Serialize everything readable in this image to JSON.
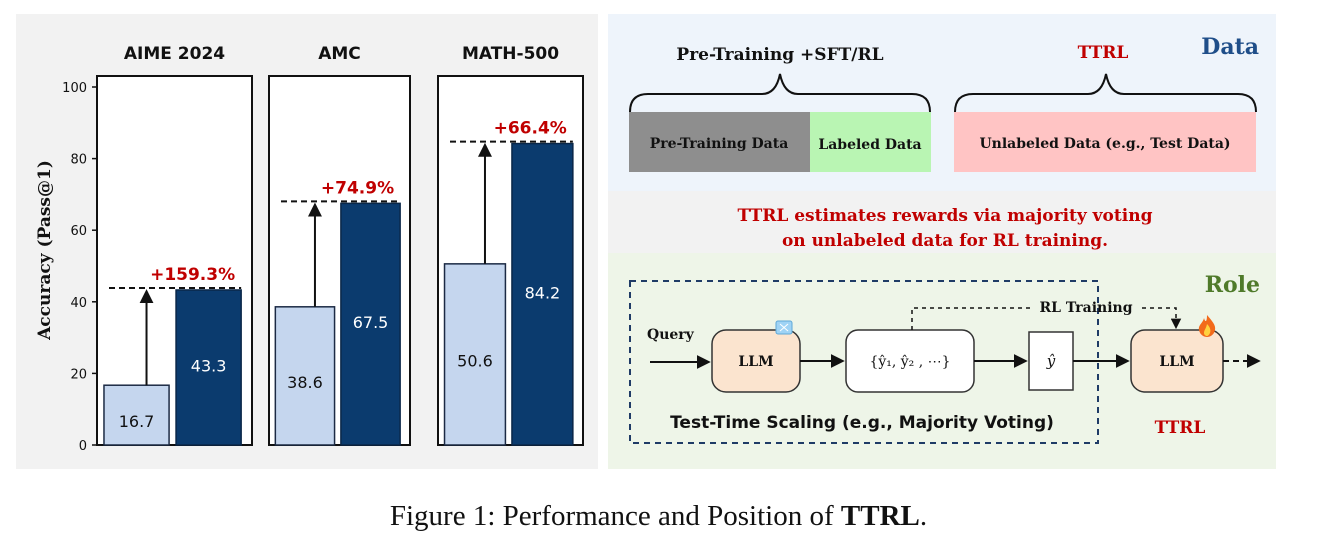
{
  "chart_data": {
    "type": "bar",
    "ylabel": "Accuracy (Pass@1)",
    "ylim": [
      0,
      100
    ],
    "yticks": [
      "0",
      "20",
      "40",
      "60",
      "80",
      "100"
    ],
    "subplots": [
      {
        "title": "AIME 2024",
        "baseline": 16.7,
        "ttrl": 43.3,
        "baseline_label": "16.7",
        "ttrl_label": "43.3",
        "gain": "+159.3%"
      },
      {
        "title": "AMC",
        "baseline": 38.6,
        "ttrl": 67.5,
        "baseline_label": "38.6",
        "ttrl_label": "67.5",
        "gain": "+74.9%"
      },
      {
        "title": "MATH-500",
        "baseline": 50.6,
        "ttrl": 84.2,
        "baseline_label": "50.6",
        "ttrl_label": "84.2",
        "gain": "+66.4%"
      }
    ],
    "colors": {
      "baseline": "#c5d6ee",
      "ttrl": "#0b3b6e",
      "gain": "#c00000"
    }
  },
  "data_panel": {
    "corner_label": "Data",
    "pretrain_label": "Pre-Training +SFT/RL",
    "ttrl_label": "TTRL",
    "box_pretraining": "Pre-Training Data",
    "box_labeled": "Labeled Data",
    "box_unlabeled": "Unlabeled Data (e.g., Test Data)"
  },
  "middle_text": {
    "line1": "TTRL estimates rewards via majority voting",
    "line2": "on unlabeled data for RL training."
  },
  "role_panel": {
    "corner_label": "Role",
    "query": "Query",
    "llm": "LLM",
    "samples": "{ŷ₁, ŷ₂ , ⋯}",
    "y_hat": "ŷ",
    "rl_training": "RL Training",
    "llm_ttrl": "LLM",
    "test_time_scaling": "Test-Time Scaling (e.g., Majority Voting)",
    "ttrl_label": "TTRL",
    "icon_frozen": "snowflake-icon",
    "icon_fire": "fire-icon"
  },
  "caption": {
    "prefix": "Figure 1: Performance and Position of ",
    "bold": "TTRL",
    "suffix": "."
  }
}
